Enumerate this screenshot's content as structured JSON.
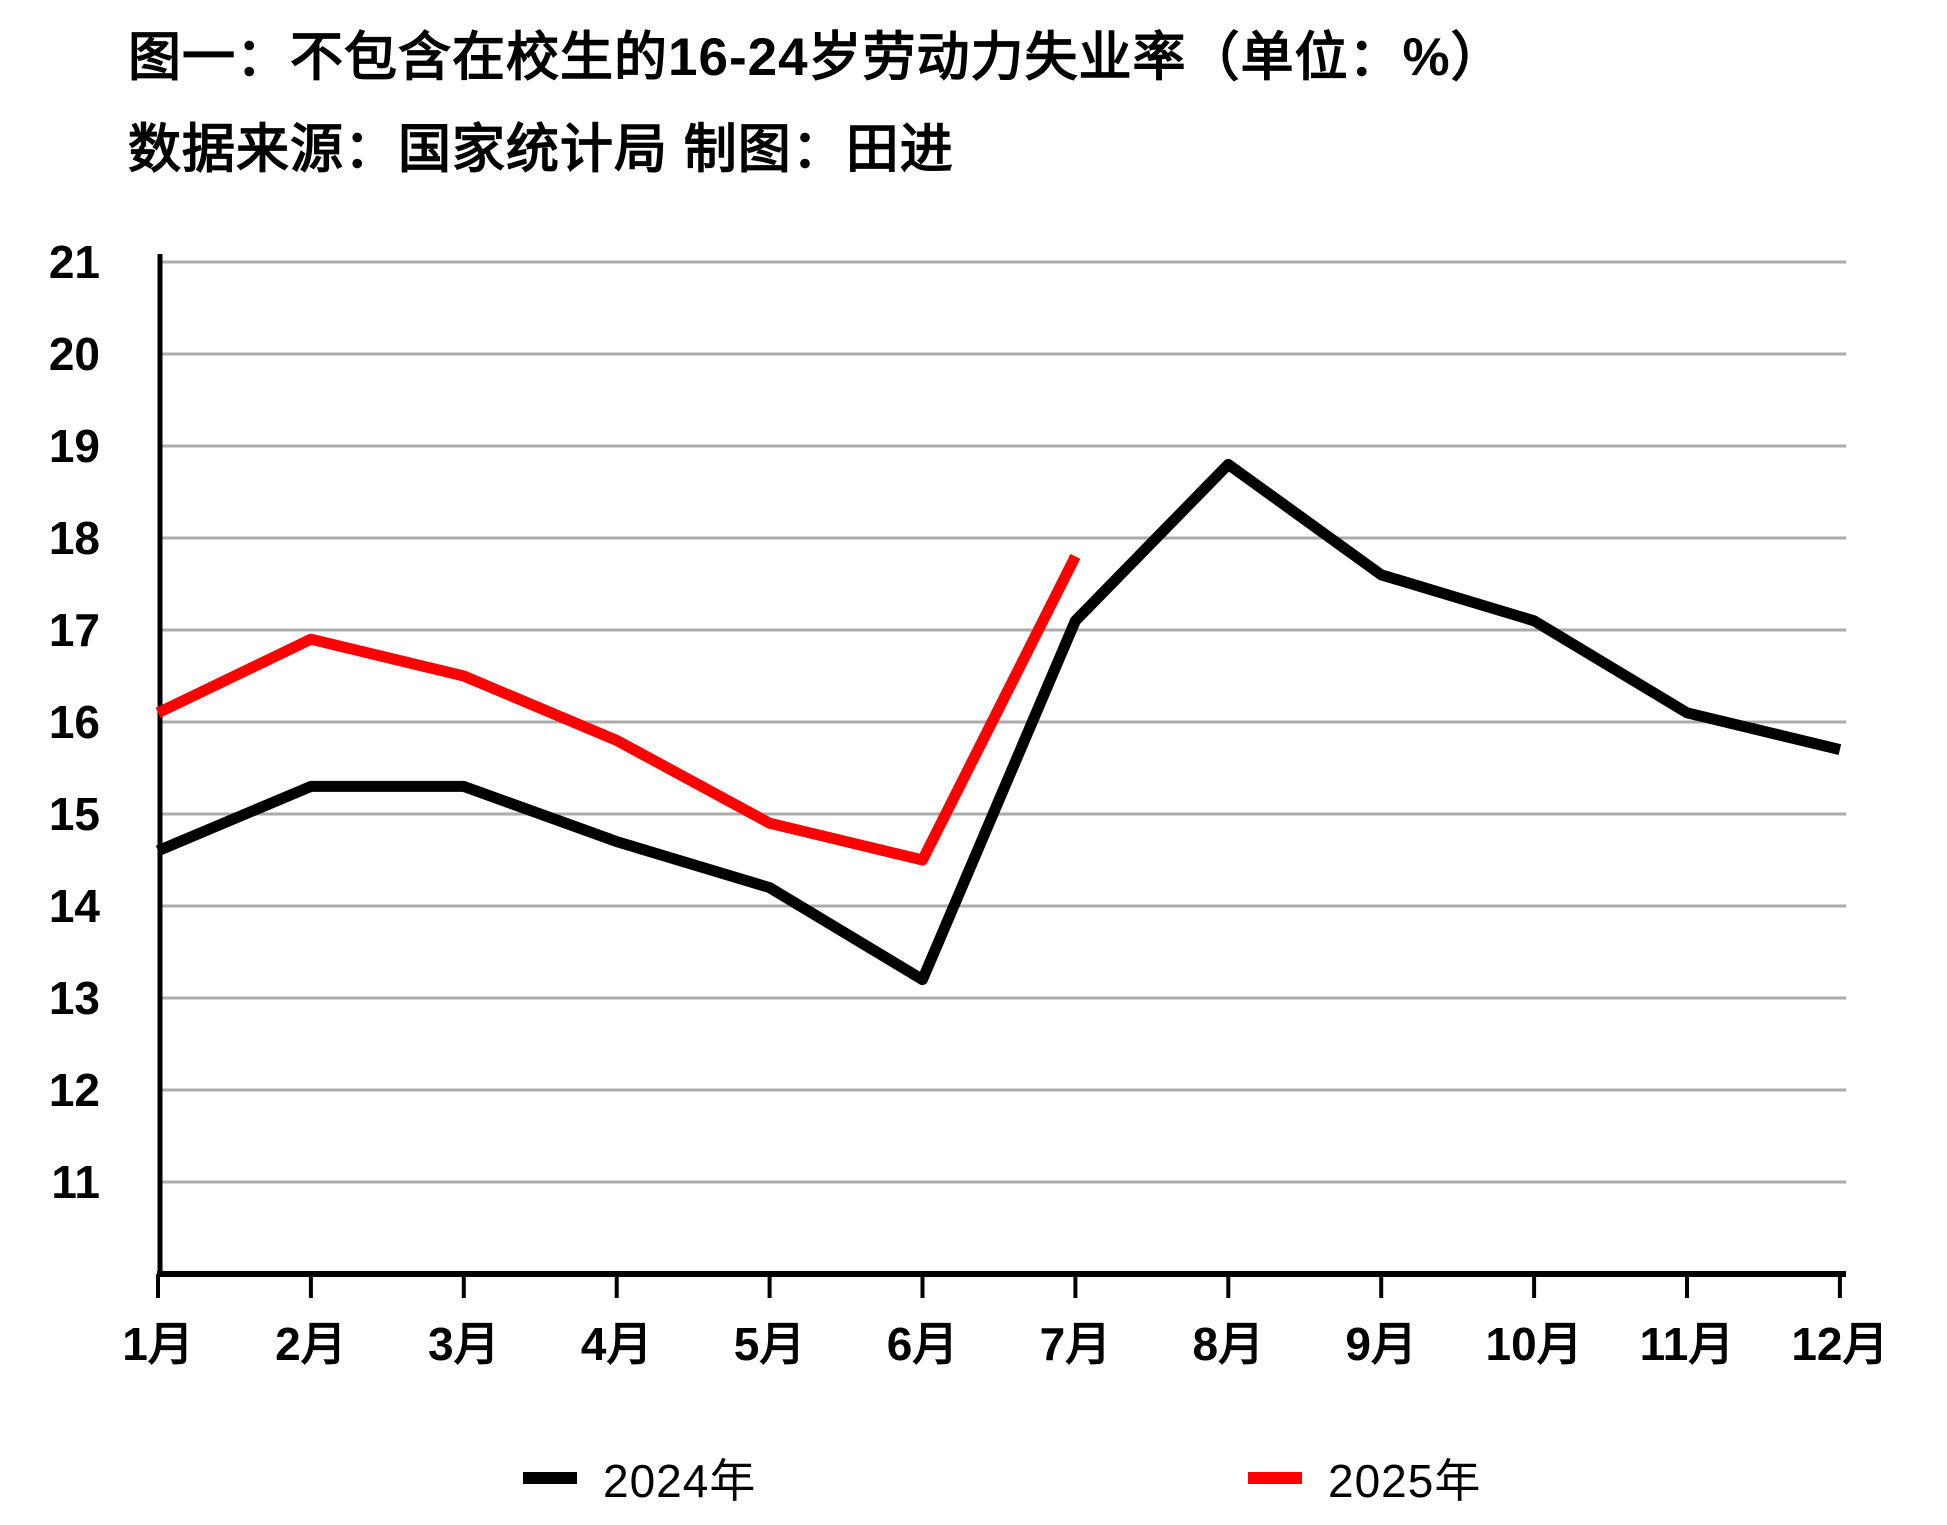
{
  "title": "图一：不包含在校生的16-24岁劳动力失业率（单位：%）",
  "subtitle": "数据来源：国家统计局 制图：田进",
  "colors": {
    "background": "#FFFFFF",
    "axis": "#000000",
    "gridline": "#ABABAB",
    "series_2024": "#000000",
    "series_2025": "#FE0000"
  },
  "legend": [
    {
      "label": "2024年",
      "color": "#000000"
    },
    {
      "label": "2025年",
      "color": "#FE0000"
    }
  ],
  "chart_data": {
    "type": "line",
    "title": "图一：不包含在校生的16-24岁劳动力失业率（单位：%）",
    "source_note": "数据来源：国家统计局 制图：田进",
    "categories": [
      "1月",
      "2月",
      "3月",
      "4月",
      "5月",
      "6月",
      "7月",
      "8月",
      "9月",
      "10月",
      "11月",
      "12月"
    ],
    "series": [
      {
        "name": "2024年",
        "color": "#000000",
        "values": [
          14.6,
          15.3,
          15.3,
          14.7,
          14.2,
          13.2,
          17.1,
          18.8,
          17.6,
          17.1,
          16.1,
          15.7
        ]
      },
      {
        "name": "2025年",
        "color": "#FE0000",
        "values": [
          16.1,
          16.9,
          16.5,
          15.8,
          14.9,
          14.5,
          17.8
        ]
      }
    ],
    "xlabel": "",
    "ylabel": "",
    "unit": "%",
    "ylim": [
      10,
      21
    ],
    "y_ticks": [
      11,
      12,
      13,
      14,
      15,
      16,
      17,
      18,
      19,
      20,
      21
    ],
    "grid": "horizontal",
    "legend_position": "bottom"
  }
}
